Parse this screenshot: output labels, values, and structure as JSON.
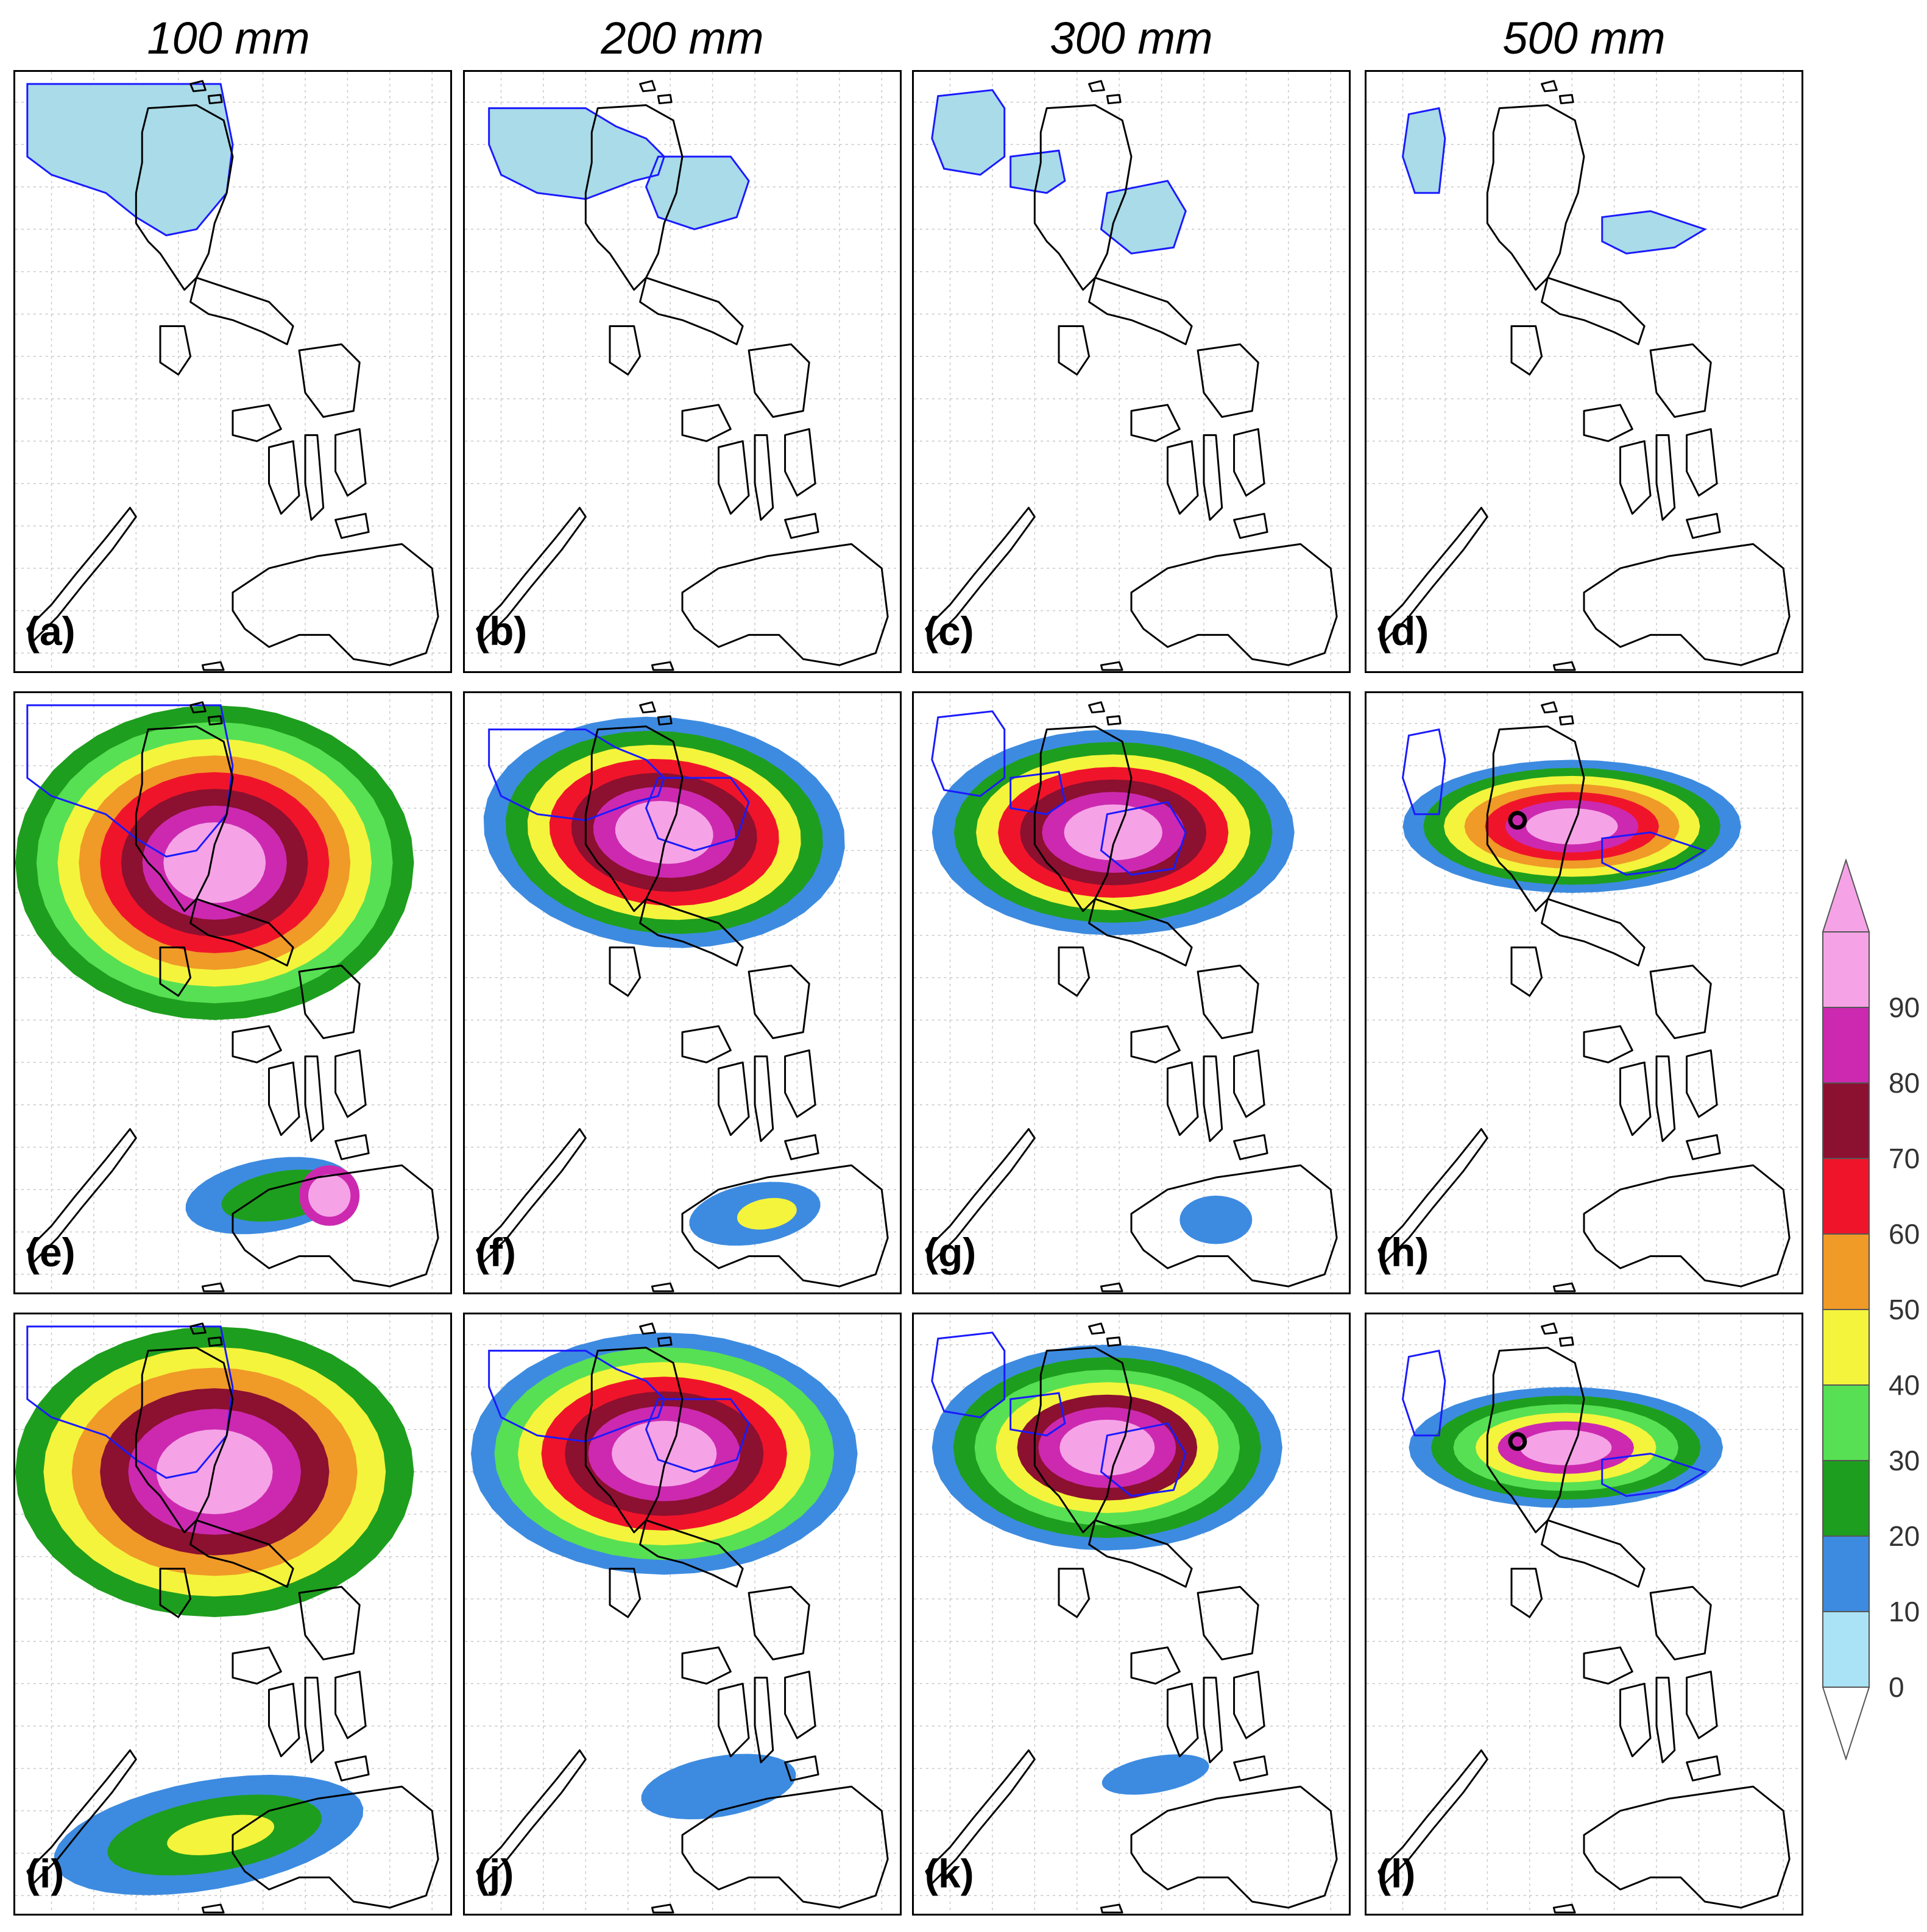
{
  "columns": [
    {
      "title": "100 mm"
    },
    {
      "title": "200 mm"
    },
    {
      "title": "300 mm"
    },
    {
      "title": "500 mm"
    }
  ],
  "panels": [
    {
      "label": "(a)",
      "row": 0,
      "col": 0
    },
    {
      "label": "(b)",
      "row": 0,
      "col": 1
    },
    {
      "label": "(c)",
      "row": 0,
      "col": 2
    },
    {
      "label": "(d)",
      "row": 0,
      "col": 3
    },
    {
      "label": "(e)",
      "row": 1,
      "col": 0
    },
    {
      "label": "(f)",
      "row": 1,
      "col": 1
    },
    {
      "label": "(g)",
      "row": 1,
      "col": 2
    },
    {
      "label": "(h)",
      "row": 1,
      "col": 3
    },
    {
      "label": "(i)",
      "row": 2,
      "col": 0
    },
    {
      "label": "(j)",
      "row": 2,
      "col": 1
    },
    {
      "label": "(k)",
      "row": 2,
      "col": 2
    },
    {
      "label": "(l)",
      "row": 2,
      "col": 3
    }
  ],
  "colorbar": {
    "ticks": [
      "0",
      "10",
      "20",
      "30",
      "40",
      "50",
      "60",
      "70",
      "80",
      "90"
    ],
    "colors": [
      "#a9e3f5",
      "#3d8be0",
      "#1e9e1e",
      "#57e053",
      "#f4f43c",
      "#f09a28",
      "#f0142a",
      "#8c1030",
      "#cc29b0",
      "#f5a3e6"
    ],
    "extend": "both"
  },
  "map_colors": {
    "coastline": "#000000",
    "contour": "#1a1aff",
    "shade_top_row": "#a9dbe8",
    "grid": "#c8c8c8"
  }
}
